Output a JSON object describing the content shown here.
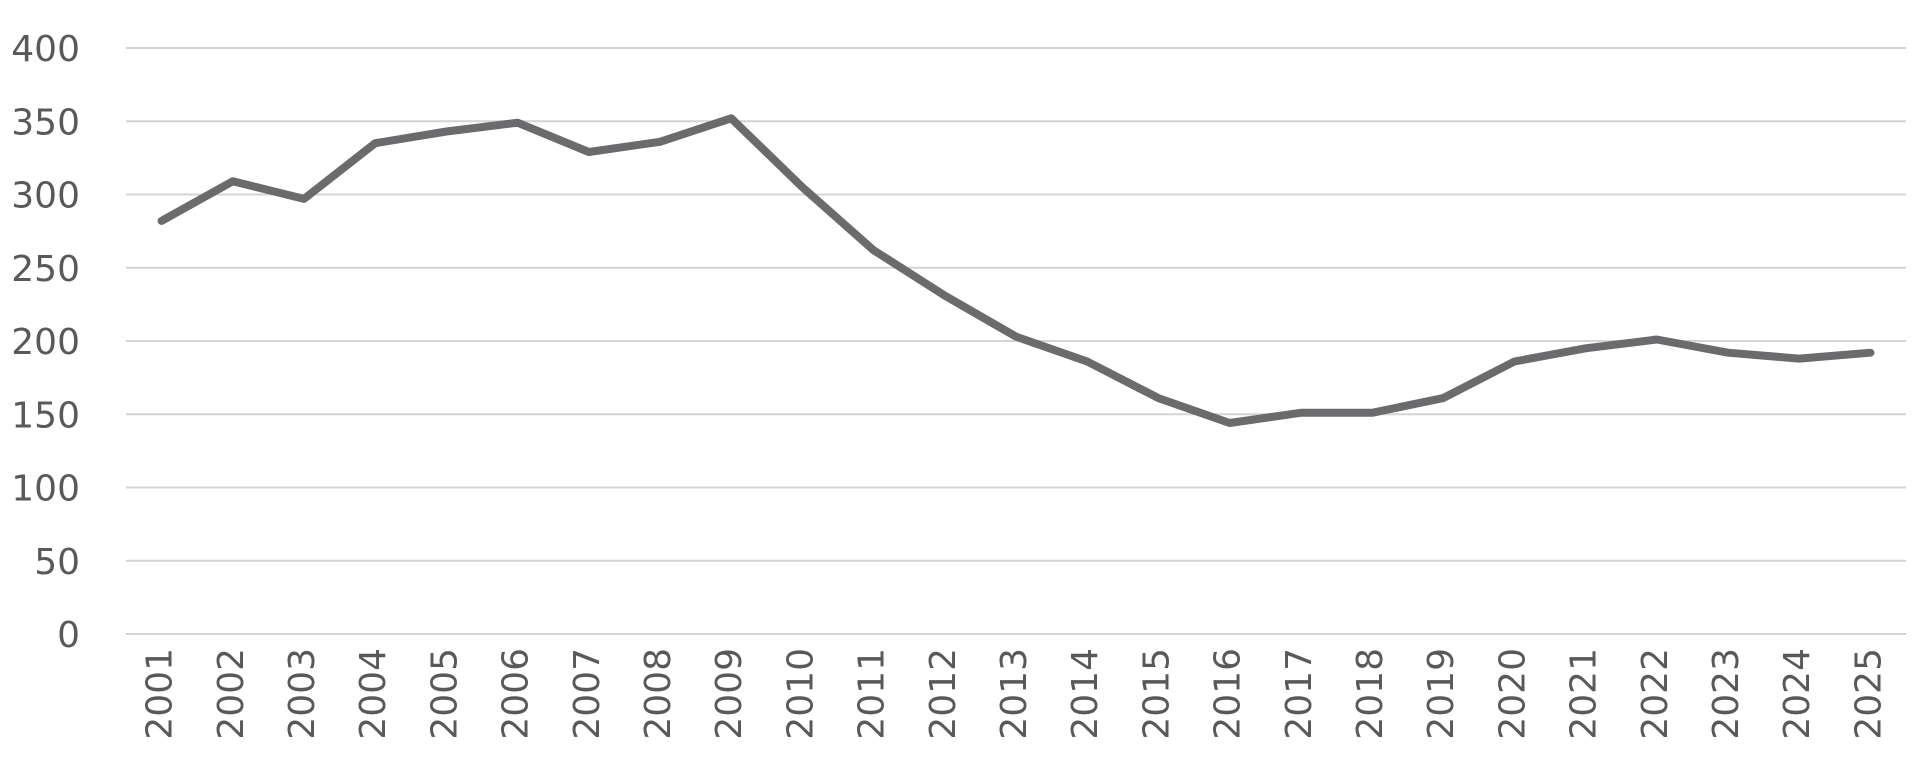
{
  "chart_data": {
    "type": "line",
    "title": "",
    "xlabel": "",
    "ylabel": "",
    "ylim": [
      0,
      400
    ],
    "yticks": [
      0,
      50,
      100,
      150,
      200,
      250,
      300,
      350,
      400
    ],
    "grid": true,
    "legend": "none",
    "categories": [
      "2001",
      "2002",
      "2003",
      "2004",
      "2005",
      "2006",
      "2007",
      "2008",
      "2009",
      "2010",
      "2011",
      "2012",
      "2013",
      "2014",
      "2015",
      "2016",
      "2017",
      "2018",
      "2019",
      "2020",
      "2021",
      "2022",
      "2023",
      "2024",
      "2025"
    ],
    "series": [
      {
        "color": "#6b6b6d",
        "values": [
          282,
          309,
          297,
          335,
          343,
          349,
          329,
          336,
          352,
          305,
          262,
          231,
          203,
          186,
          161,
          144,
          151,
          151,
          161,
          186,
          195,
          201,
          192,
          188,
          192
        ]
      }
    ]
  }
}
